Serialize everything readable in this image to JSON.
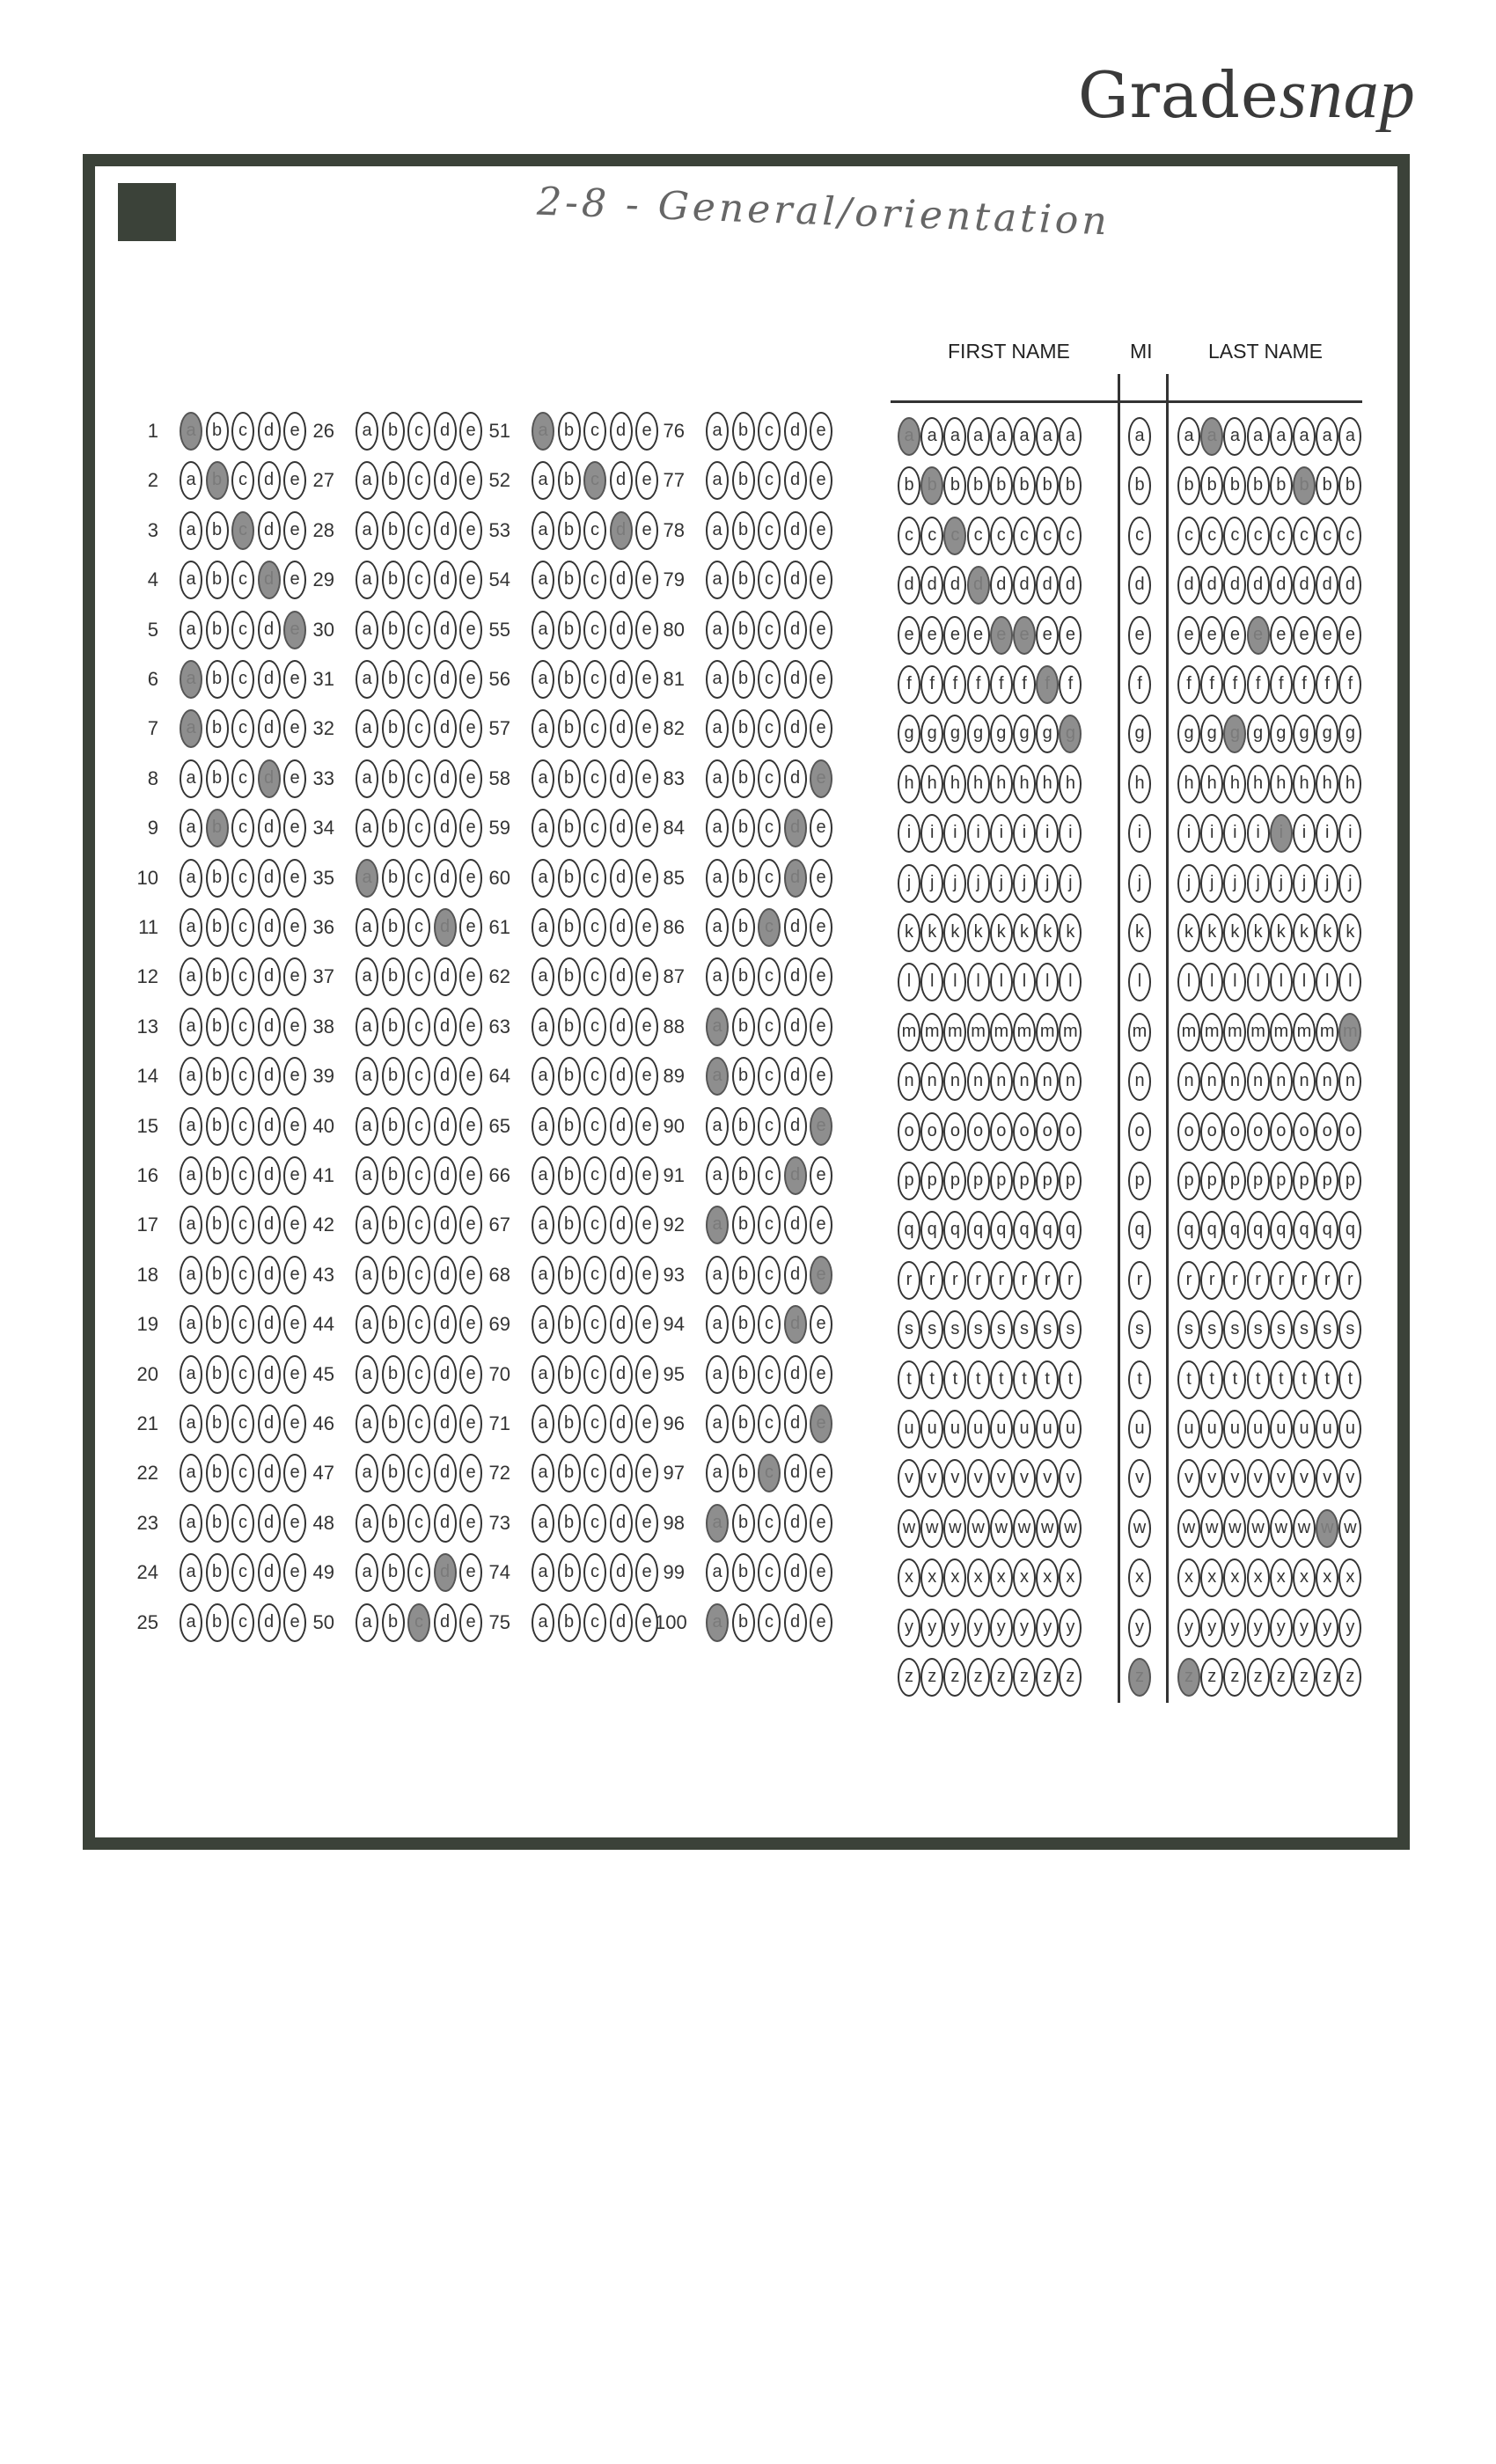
{
  "brand": {
    "text_plain": "Grade",
    "text_script": "snap"
  },
  "handwritten_title": "2-8 - General/orientation",
  "headers": {
    "first_name": "FIRST NAME",
    "mi": "MI",
    "last_name": "LAST NAME"
  },
  "choices": [
    "a",
    "b",
    "c",
    "d",
    "e"
  ],
  "answers": {
    "1": "a",
    "2": "b",
    "3": "c",
    "4": "d",
    "5": "e",
    "6": "a",
    "7": "a",
    "8": "d",
    "9": "b",
    "35": "a",
    "36": "d",
    "49": "d",
    "50": "c",
    "51": "a",
    "52": "c",
    "53": "d",
    "83": "e",
    "84": "d",
    "85": "d",
    "86": "c",
    "88": "a",
    "89": "a",
    "90": "e",
    "91": "d",
    "92": "a",
    "93": "e",
    "94": "d",
    "96": "e",
    "97": "c",
    "98": "a",
    "100": "a"
  },
  "name_grid": {
    "letters": [
      "a",
      "b",
      "c",
      "d",
      "e",
      "f",
      "g",
      "h",
      "i",
      "j",
      "k",
      "l",
      "m",
      "n",
      "o",
      "p",
      "q",
      "r",
      "s",
      "t",
      "u",
      "v",
      "w",
      "x",
      "y",
      "z"
    ],
    "first_name_marks": [
      "a",
      "b",
      "c",
      "d",
      "e",
      "e",
      "f",
      "g"
    ],
    "middle_initial_mark": "z",
    "last_name_marks": [
      "z",
      "a",
      "g",
      "e",
      "i",
      "b",
      "w",
      "m"
    ]
  }
}
